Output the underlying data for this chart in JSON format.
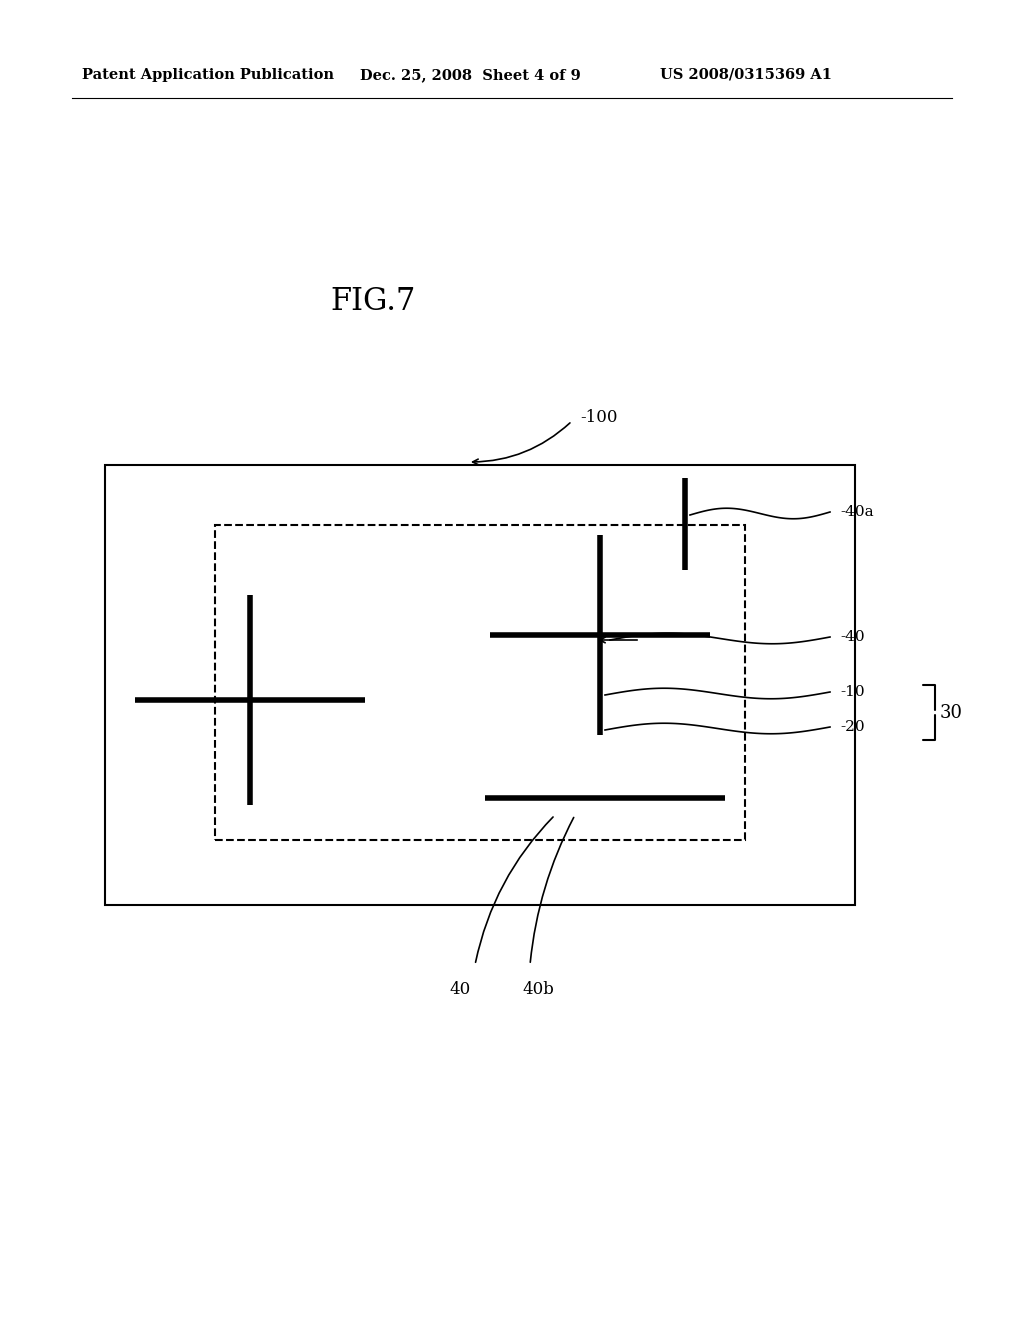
{
  "bg_color": "#ffffff",
  "header_text": "Patent Application Publication",
  "header_date": "Dec. 25, 2008  Sheet 4 of 9",
  "header_patent": "US 2008/0315369 A1",
  "fig_label": "FIG.7",
  "label_100": "-100",
  "label_40a": "-40a",
  "label_40": "-40",
  "label_10": "-10",
  "label_20": "-20",
  "label_30": "30",
  "label_40_bot": "40",
  "label_40b": "40b",
  "line_color": "#000000",
  "lw_main": 1.5,
  "lw_cross": 4.0,
  "lw_thin": 1.2
}
